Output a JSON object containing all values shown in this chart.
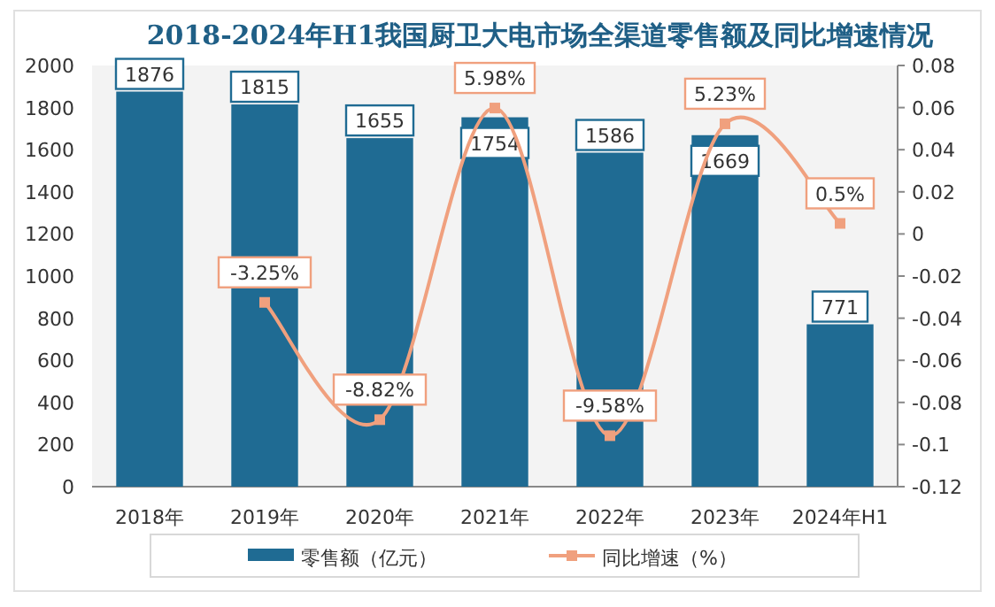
{
  "chart_data": {
    "type": "bar",
    "title": "2018-2024年H1我国厨卫大电市场全渠道零售额及同比增速情况",
    "categories": [
      "2018年",
      "2019年",
      "2020年",
      "2021年",
      "2022年",
      "2023年",
      "2024年H1"
    ],
    "series": [
      {
        "name": "零售额（亿元）",
        "color": "#1f6b93",
        "values": [
          1876,
          1815,
          1655,
          1754,
          1586,
          1669,
          771
        ]
      },
      {
        "name": "同比增速（%）",
        "type": "line",
        "axis": "y2",
        "color": "#f0a07e",
        "marker": "square",
        "values": [
          null,
          -0.0325,
          -0.0882,
          0.0598,
          -0.0958,
          0.0523,
          0.005
        ],
        "value_labels": [
          null,
          "-3.25%",
          "-8.82%",
          "5.98%",
          "-9.58%",
          "5.23%",
          "0.5%"
        ]
      }
    ],
    "data_labels": true,
    "ylim": [
      0,
      2000
    ],
    "yticks": [
      0,
      200,
      400,
      600,
      800,
      1000,
      1200,
      1400,
      1600,
      1800,
      2000
    ],
    "y2lim": [
      -0.12,
      0.08
    ],
    "y2ticks": [
      -0.12,
      -0.1,
      -0.08,
      -0.06,
      -0.04,
      -0.02,
      0,
      0.02,
      0.04,
      0.06,
      0.08
    ],
    "legend": "bottom",
    "grid": false
  }
}
